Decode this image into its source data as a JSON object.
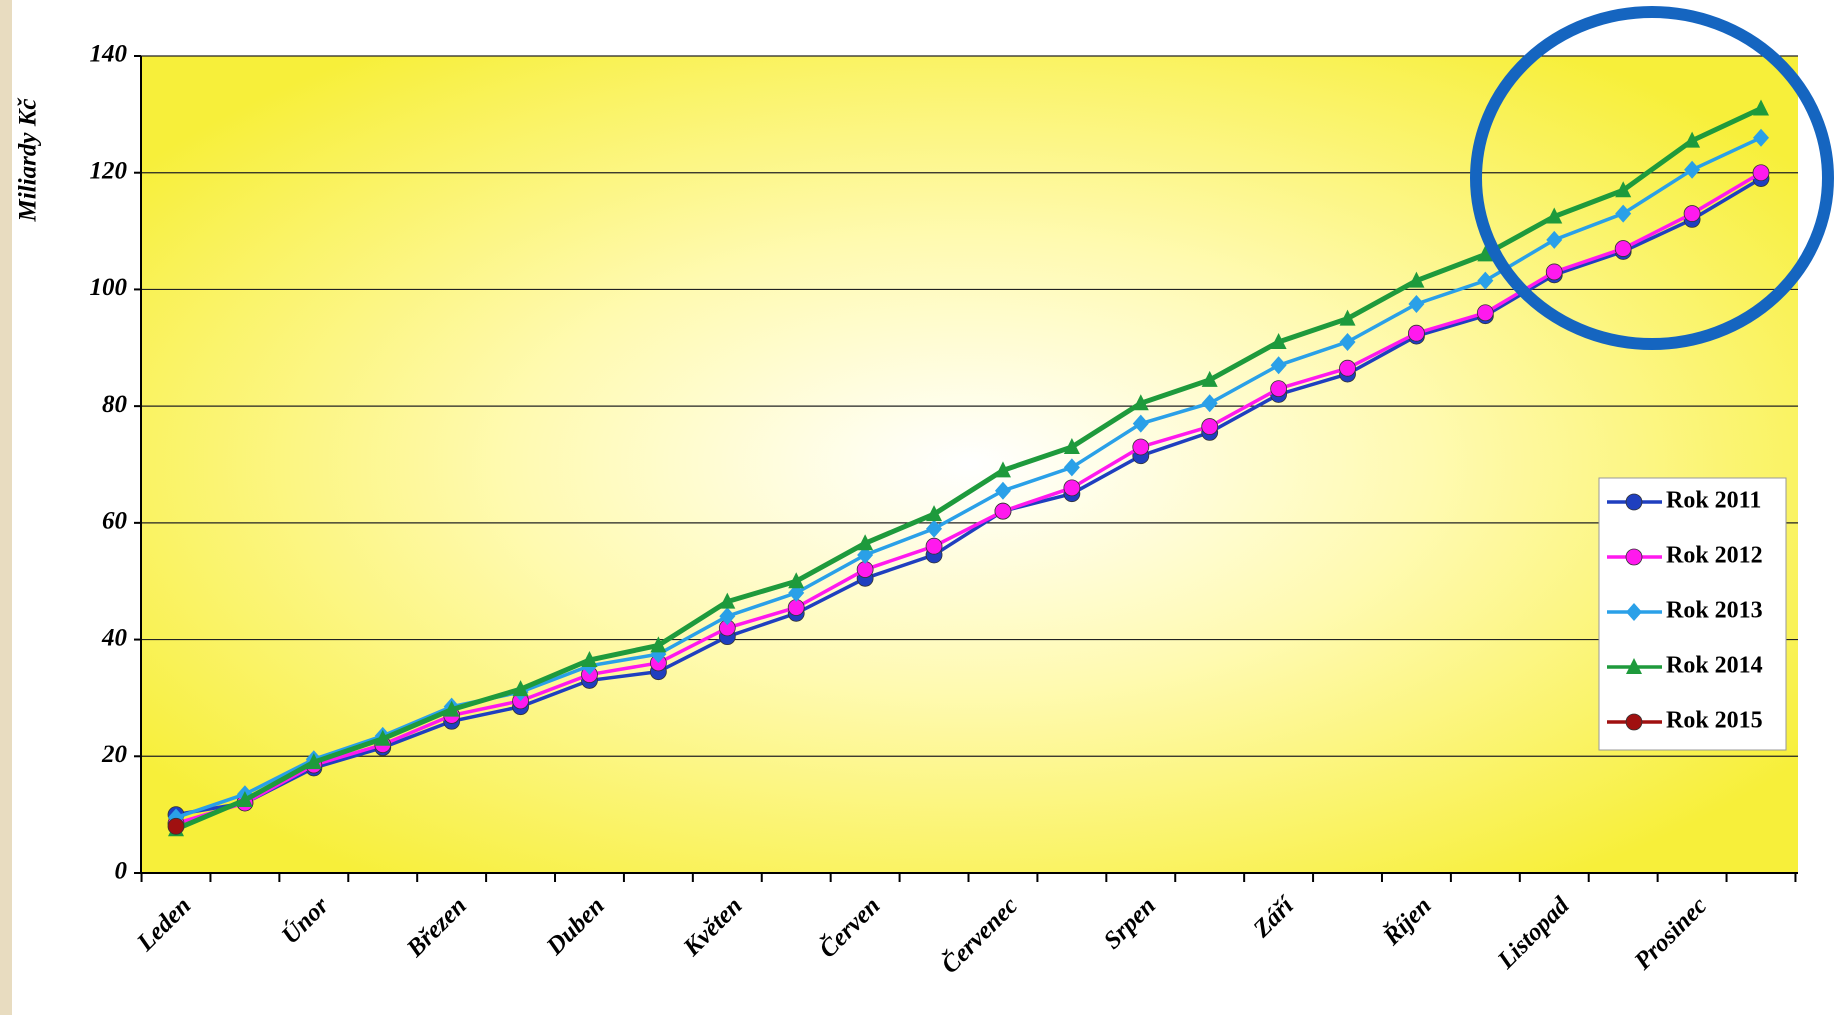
{
  "chart_data": {
    "type": "line",
    "y_label": "Miliardy Kč",
    "categories": [
      "Leden",
      null,
      "Únor",
      null,
      "Březen",
      null,
      "Duben",
      null,
      "Květen",
      null,
      "Červen",
      null,
      "Červenec",
      null,
      "Srpen",
      null,
      "Září",
      null,
      "Říjen",
      null,
      "Listopad",
      null,
      "Prosinec",
      null
    ],
    "series": [
      {
        "name": "Rok 2011",
        "color": "#1f3fbf",
        "marker": "circle",
        "values": [
          10,
          12,
          18,
          21.5,
          26,
          28.5,
          33,
          34.5,
          40.5,
          44.5,
          50.5,
          54.5,
          62,
          65,
          71.5,
          75.5,
          82,
          85.5,
          92,
          95.5,
          102.5,
          106.5,
          112,
          119
        ]
      },
      {
        "name": "Rok 2012",
        "color": "#ff19ee",
        "marker": "circle",
        "values": [
          8.5,
          12,
          18.5,
          22,
          27,
          29.5,
          34,
          36,
          42,
          45.5,
          52,
          56,
          62,
          66,
          73,
          76.5,
          83,
          86.5,
          92.5,
          96,
          103,
          107,
          113,
          120
        ]
      },
      {
        "name": "Rok 2013",
        "color": "#2aa0e8",
        "marker": "diamond",
        "values": [
          9.5,
          13.5,
          19.5,
          23.5,
          28.5,
          31,
          35.5,
          37.5,
          44,
          48,
          54.5,
          59,
          65.5,
          69.5,
          77,
          80.5,
          87,
          91,
          97.5,
          101.5,
          108.5,
          113,
          120.5,
          126
        ]
      },
      {
        "name": "Rok 2014",
        "color": "#1e9a3c",
        "marker": "triangle",
        "values": [
          7.5,
          12.5,
          19,
          23,
          28,
          31.5,
          36.5,
          39,
          46.5,
          50,
          56.5,
          61.5,
          69,
          73,
          80.5,
          84.5,
          91,
          95,
          101.5,
          106,
          112.5,
          117,
          125.5,
          131
        ]
      },
      {
        "name": "Rok 2015",
        "color": "#a01010",
        "marker": "circle",
        "values": [
          8,
          null,
          null,
          null,
          null,
          null,
          null,
          null,
          null,
          null,
          null,
          null,
          null,
          null,
          null,
          null,
          null,
          null,
          null,
          null,
          null,
          null,
          null,
          null
        ]
      }
    ],
    "ylim": [
      0,
      140
    ],
    "yticks": [
      0,
      20,
      40,
      60,
      80,
      100,
      120,
      140
    ],
    "grid": true
  }
}
